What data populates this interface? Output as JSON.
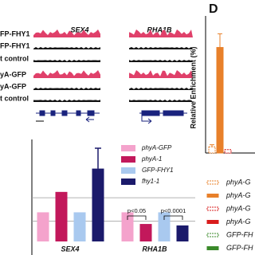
{
  "tracks": {
    "genes": [
      "SEX4",
      "RHA1B"
    ],
    "labels": [
      "FP-FHY1",
      "FP-FHY1",
      "t control",
      "yA-GFP",
      "yA-GFP",
      "t control"
    ]
  },
  "chart_data": [
    {
      "type": "bar",
      "categories": [
        "SEX4",
        "RHA1B"
      ],
      "series": [
        {
          "name": "phyA-GFP",
          "color": "#f4a3cc",
          "values": [
            1.0,
            1.0
          ]
        },
        {
          "name": "phyA-1",
          "color": "#c2185b",
          "values": [
            1.7,
            0.6
          ]
        },
        {
          "name": "GFP-FHY1",
          "color": "#a9c9ef",
          "values": [
            1.0,
            1.0
          ]
        },
        {
          "name": "fhy1-1",
          "color": "#1b1a6b",
          "values": [
            2.5,
            0.55
          ],
          "errors": [
            0.7,
            null
          ]
        }
      ],
      "reference_lines": [
        1.5,
        0.7
      ],
      "annotations": [
        "p<0.05",
        "p<0.0001"
      ],
      "ylim": [
        0,
        3.5
      ]
    },
    {
      "type": "bar",
      "panel": "D",
      "y_label": "Relative Enrichment (%)",
      "categories": [
        null
      ],
      "series": [
        {
          "name": "phyA-G",
          "color": "#e8802a",
          "dashed": true,
          "values": [
            0.45
          ],
          "errors": [
            0.15
          ]
        },
        {
          "name": "phyA-G",
          "color": "#e8802a",
          "dashed": false,
          "values": [
            7.7
          ],
          "errors": [
            1.0
          ]
        },
        {
          "name": "phyA-G",
          "color": "#d91c1c",
          "dashed": true,
          "values": [
            0.25
          ],
          "errors": [
            null
          ]
        },
        {
          "name": "phyA-G",
          "color": "#d91c1c",
          "dashed": false,
          "values": [
            null
          ],
          "errors": [
            null
          ]
        },
        {
          "name": "GFP-FH",
          "color": "#3a8a2a",
          "dashed": true,
          "values": [
            null
          ],
          "errors": [
            null
          ]
        },
        {
          "name": "GFP-FH",
          "color": "#3a8a2a",
          "dashed": false,
          "values": [
            null
          ],
          "errors": [
            null
          ]
        }
      ],
      "ylim": [
        0,
        10
      ]
    }
  ]
}
